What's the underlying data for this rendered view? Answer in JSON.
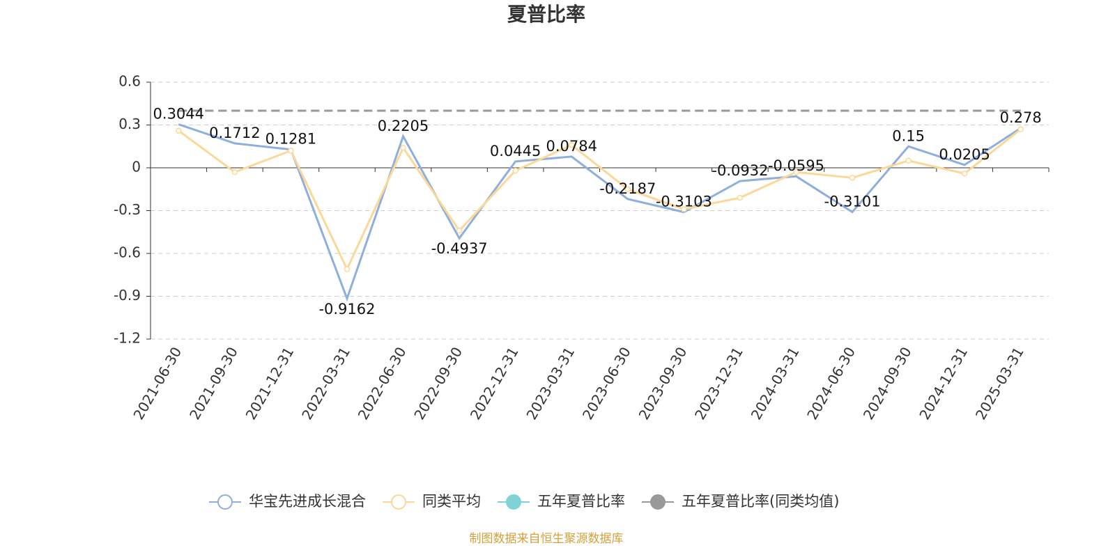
{
  "chart_data": {
    "type": "line",
    "title": "夏普比率",
    "categories": [
      "2021-06-30",
      "2021-09-30",
      "2021-12-31",
      "2022-03-31",
      "2022-06-30",
      "2022-09-30",
      "2022-12-31",
      "2023-03-31",
      "2023-06-30",
      "2023-09-30",
      "2023-12-31",
      "2024-03-31",
      "2024-06-30",
      "2024-09-30",
      "2024-12-31",
      "2025-03-31"
    ],
    "series": [
      {
        "name": "华宝先进成长混合",
        "color": "#8eaedb",
        "symbol": false,
        "labels": true,
        "dashed": false,
        "values": [
          0.3044,
          0.1712,
          0.1281,
          -0.9162,
          0.2205,
          -0.4937,
          0.0445,
          0.0784,
          -0.2187,
          -0.3103,
          -0.0932,
          -0.0595,
          -0.3101,
          0.15,
          0.0205,
          0.278
        ]
      },
      {
        "name": "同类平均",
        "color": "#fcd898",
        "symbol": true,
        "labels": false,
        "dashed": false,
        "values": [
          0.26,
          -0.03,
          0.12,
          -0.71,
          0.14,
          -0.44,
          -0.02,
          0.16,
          -0.15,
          -0.29,
          -0.21,
          -0.03,
          -0.07,
          0.05,
          -0.04,
          0.27
        ]
      },
      {
        "name": "五年夏普比率",
        "color": "#7fd3d4",
        "symbol": false,
        "labels": false,
        "dashed": true,
        "values": [
          0.4,
          0.4,
          0.4,
          0.4,
          0.4,
          0.4,
          0.4,
          0.4,
          0.4,
          0.4,
          0.4,
          0.4,
          0.4,
          0.4,
          0.4,
          0.4
        ]
      },
      {
        "name": "五年夏普比率(同类均值)",
        "color": "#999999",
        "symbol": false,
        "labels": false,
        "dashed": true,
        "values": [
          0.4,
          0.4,
          0.4,
          0.4,
          0.4,
          0.4,
          0.4,
          0.4,
          0.4,
          0.4,
          0.4,
          0.4,
          0.4,
          0.4,
          0.4,
          0.4
        ]
      }
    ],
    "ylim": [
      -1.2,
      0.6
    ],
    "yticks": [
      -1.2,
      -0.9,
      -0.6,
      -0.3,
      0,
      0.3,
      0.6
    ],
    "grid": true,
    "legend": "bottom",
    "source": "制图数据来自恒生聚源数据库"
  }
}
